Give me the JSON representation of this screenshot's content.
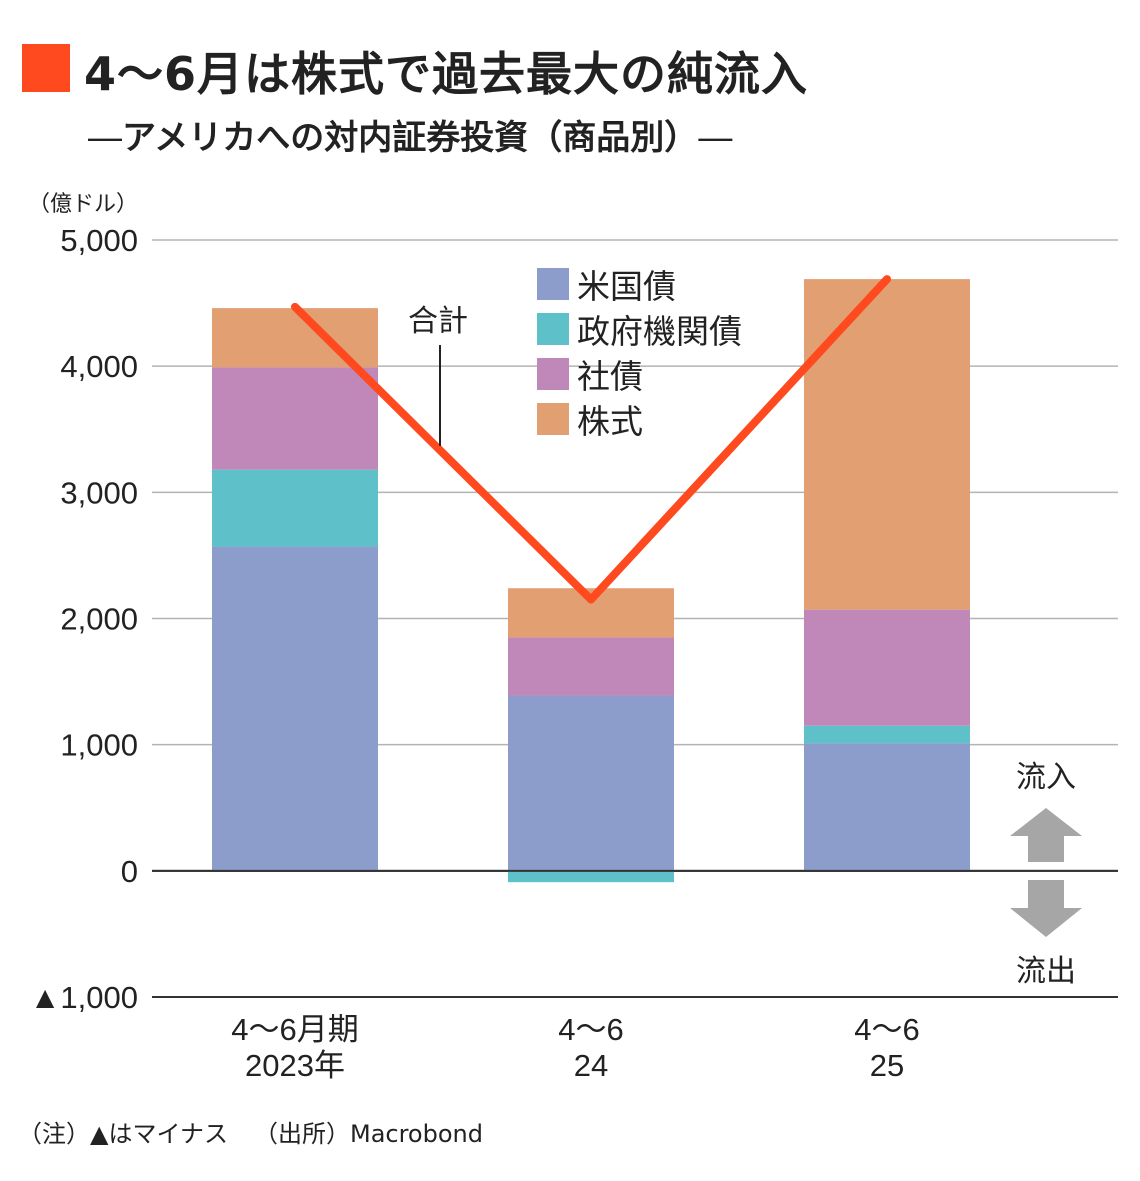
{
  "title": "4〜6月は株式で過去最大の純流入",
  "subtitle": "アメリカへの対内証券投資（商品別）",
  "subtitle_dash": "―",
  "unit_label": "（億ドル）",
  "total_label": "合計",
  "inflow_label": "流入",
  "outflow_label": "流出",
  "note_label": "（注）▲はマイナス",
  "source_label": "（出所）Macrobond",
  "colors": {
    "title_square": "#ff4a1f",
    "total_line": "#ff4a1f",
    "arrow": "#a6a6a6",
    "grid": "#b3b3b3"
  },
  "chart_data": {
    "type": "bar",
    "stacked": true,
    "categories": [
      [
        "4〜6月期",
        "2023年"
      ],
      [
        "4〜6",
        "24"
      ],
      [
        "4〜6",
        "25"
      ]
    ],
    "series": [
      {
        "name": "米国債",
        "color": "#8c9dcb",
        "values": [
          2570,
          1390,
          1010
        ]
      },
      {
        "name": "政府機関債",
        "color": "#5ec1c9",
        "values": [
          610,
          -90,
          140
        ]
      },
      {
        "name": "社債",
        "color": "#bf88b8",
        "values": [
          810,
          460,
          920
        ]
      },
      {
        "name": "株式",
        "color": "#e19f72",
        "values": [
          470,
          390,
          2620
        ]
      }
    ],
    "total": {
      "name": "合計",
      "values": [
        4470,
        2150,
        4690
      ]
    },
    "yticks": [
      {
        "value": 5000,
        "label": "5,000"
      },
      {
        "value": 4000,
        "label": "4,000"
      },
      {
        "value": 3000,
        "label": "3,000"
      },
      {
        "value": 2000,
        "label": "2,000"
      },
      {
        "value": 1000,
        "label": "1,000"
      },
      {
        "value": 0,
        "label": "0"
      },
      {
        "value": -1000,
        "label": "▲1,000"
      }
    ],
    "ylim": [
      -1000,
      5000
    ],
    "grid": true,
    "legend_position": "top-center"
  }
}
